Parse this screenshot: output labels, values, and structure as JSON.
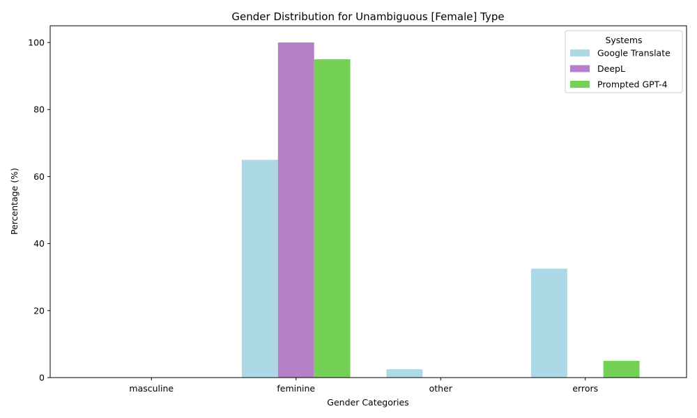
{
  "chart_data": {
    "type": "bar",
    "title": "Gender Distribution for Unambiguous [Female] Type",
    "xlabel": "Gender Categories",
    "ylabel": "Percentage (%)",
    "categories": [
      "masculine",
      "feminine",
      "other",
      "errors"
    ],
    "ylim": [
      0,
      105
    ],
    "yticks": [
      0,
      20,
      40,
      60,
      80,
      100
    ],
    "legend": {
      "title": "Systems",
      "placement": "top-right"
    },
    "series": [
      {
        "name": "Google Translate",
        "color": "#add8e6",
        "values": [
          0,
          65,
          2.5,
          32.5
        ]
      },
      {
        "name": "DeepL",
        "color": "#b77fc8",
        "values": [
          0,
          100,
          0,
          0
        ]
      },
      {
        "name": "Prompted GPT-4",
        "color": "#74d155",
        "values": [
          0,
          95,
          0,
          5
        ]
      }
    ],
    "grid": false
  }
}
